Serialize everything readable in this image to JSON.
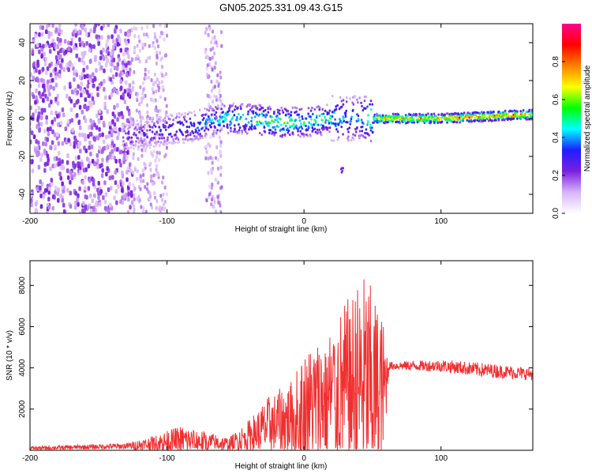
{
  "title": "GN05.2025.331.09.43.G15",
  "chart_data": [
    {
      "type": "heatmap",
      "xlabel": "Height of straight line (km)",
      "ylabel": "Frequency (Hz)",
      "xlim": [
        -200,
        167
      ],
      "ylim": [
        -50,
        50
      ],
      "xticks": [
        -200,
        -100,
        0,
        100
      ],
      "yticks": [
        -40,
        -20,
        0,
        20,
        40
      ],
      "colorbar": {
        "label": "Normalized spectral amplitude",
        "range": [
          0,
          1
        ],
        "ticks": [
          "0.0",
          "0.2",
          "0.4",
          "0.6",
          "0.8"
        ],
        "colors": [
          "#ffffff",
          "#d8b4f8",
          "#7a1fe0",
          "#1e1eff",
          "#00ffff",
          "#00ff00",
          "#ffff00",
          "#ff8000",
          "#ff0000",
          "#ff0090"
        ]
      },
      "ridge": [
        {
          "x": -130,
          "freq": -9,
          "amp": 0.25
        },
        {
          "x": -115,
          "freq": -8,
          "amp": 0.3
        },
        {
          "x": -100,
          "freq": -6,
          "amp": 0.35
        },
        {
          "x": -80,
          "freq": -4,
          "amp": 0.4
        },
        {
          "x": -60,
          "freq": 0,
          "amp": 0.5
        },
        {
          "x": -40,
          "freq": 0,
          "amp": 0.55
        },
        {
          "x": -20,
          "freq": -2,
          "amp": 0.6
        },
        {
          "x": 0,
          "freq": -2,
          "amp": 0.55
        },
        {
          "x": 20,
          "freq": 0,
          "amp": 0.5
        },
        {
          "x": 40,
          "freq": 0,
          "amp": 0.4
        },
        {
          "x": 55,
          "freq": 0,
          "amp": 0.75
        },
        {
          "x": 80,
          "freq": 0,
          "amp": 0.8
        },
        {
          "x": 100,
          "freq": 0,
          "amp": 0.82
        },
        {
          "x": 130,
          "freq": 1,
          "amp": 0.85
        },
        {
          "x": 160,
          "freq": 2,
          "amp": 0.85
        }
      ]
    },
    {
      "type": "line",
      "xlabel": "Height of straight line (km)",
      "ylabel": "SNR (10 * v/v)",
      "xlim": [
        -200,
        167
      ],
      "ylim": [
        0,
        9200
      ],
      "xticks": [
        -200,
        -100,
        0,
        100
      ],
      "yticks": [
        2000,
        4000,
        6000,
        8000
      ],
      "color": "#f03030",
      "envelope": [
        {
          "x": -200,
          "base": 100,
          "amp": 80
        },
        {
          "x": -130,
          "base": 200,
          "amp": 150
        },
        {
          "x": -110,
          "base": 300,
          "amp": 400
        },
        {
          "x": -90,
          "base": 500,
          "amp": 700
        },
        {
          "x": -70,
          "base": 400,
          "amp": 500
        },
        {
          "x": -55,
          "base": 300,
          "amp": 300
        },
        {
          "x": -40,
          "base": 700,
          "amp": 800
        },
        {
          "x": -25,
          "base": 1200,
          "amp": 1500
        },
        {
          "x": -10,
          "base": 1500,
          "amp": 1800
        },
        {
          "x": 0,
          "base": 2000,
          "amp": 2800
        },
        {
          "x": 15,
          "base": 2500,
          "amp": 3200
        },
        {
          "x": 30,
          "base": 3000,
          "amp": 4200
        },
        {
          "x": 45,
          "base": 3200,
          "amp": 5500
        },
        {
          "x": 58,
          "base": 2800,
          "amp": 3500
        },
        {
          "x": 62,
          "base": 4100,
          "amp": 200
        },
        {
          "x": 100,
          "base": 4100,
          "amp": 300
        },
        {
          "x": 130,
          "base": 3900,
          "amp": 350
        },
        {
          "x": 167,
          "base": 3700,
          "amp": 300
        }
      ]
    }
  ]
}
